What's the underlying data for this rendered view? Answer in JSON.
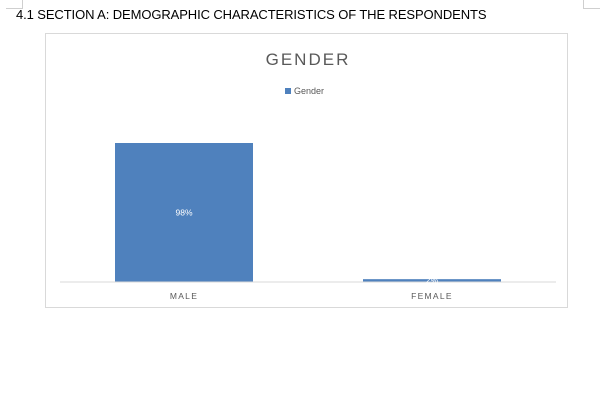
{
  "document": {
    "section_heading": "4.1 SECTION A: DEMOGRAPHIC CHARACTERISTICS OF THE RESPONDENTS"
  },
  "chart_data": {
    "type": "bar",
    "title": "GENDER",
    "categories": [
      "MALE",
      "FEMALE"
    ],
    "series": [
      {
        "name": "Gender",
        "values": [
          98,
          2
        ],
        "data_labels": [
          "98%",
          "2%"
        ]
      }
    ],
    "value_unit": "%",
    "ylim": [
      0,
      100
    ],
    "grid": false,
    "legend_position": "top",
    "color": "#4f81bd"
  }
}
